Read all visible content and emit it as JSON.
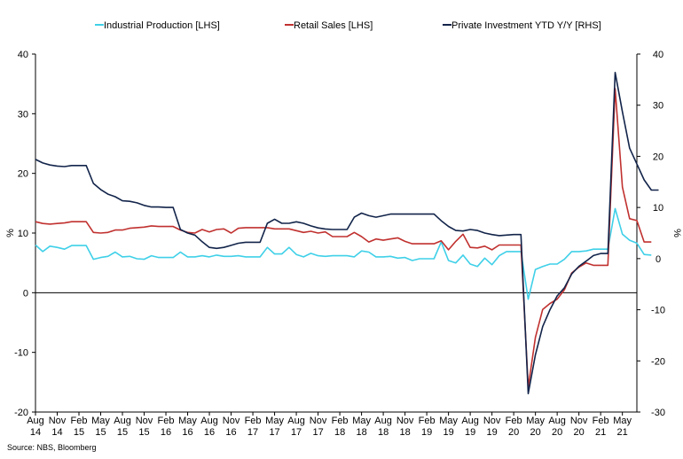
{
  "chart_data": {
    "type": "line",
    "title": "",
    "source": "Source: NBS, Bloomberg",
    "y_left_label": "%",
    "y_right_label": "%",
    "y_left_range": [
      -20,
      40
    ],
    "y_right_range": [
      -30,
      40
    ],
    "y_left_ticks": [
      "40",
      "30",
      "20",
      "10",
      "0",
      "-10",
      "-20"
    ],
    "y_right_ticks": [
      "40",
      "30",
      "20",
      "10",
      "0",
      "-10",
      "-20",
      "-30"
    ],
    "x_ticks": [
      {
        "m": "Aug",
        "y": "14"
      },
      {
        "m": "Nov",
        "y": "14"
      },
      {
        "m": "Feb",
        "y": "15"
      },
      {
        "m": "May",
        "y": "15"
      },
      {
        "m": "Aug",
        "y": "15"
      },
      {
        "m": "Nov",
        "y": "15"
      },
      {
        "m": "Feb",
        "y": "16"
      },
      {
        "m": "May",
        "y": "16"
      },
      {
        "m": "Aug",
        "y": "16"
      },
      {
        "m": "Nov",
        "y": "16"
      },
      {
        "m": "Feb",
        "y": "17"
      },
      {
        "m": "May",
        "y": "17"
      },
      {
        "m": "Aug",
        "y": "17"
      },
      {
        "m": "Nov",
        "y": "17"
      },
      {
        "m": "Feb",
        "y": "18"
      },
      {
        "m": "May",
        "y": "18"
      },
      {
        "m": "Aug",
        "y": "18"
      },
      {
        "m": "Nov",
        "y": "18"
      },
      {
        "m": "Feb",
        "y": "19"
      },
      {
        "m": "May",
        "y": "19"
      },
      {
        "m": "Aug",
        "y": "19"
      },
      {
        "m": "Nov",
        "y": "19"
      },
      {
        "m": "Feb",
        "y": "20"
      },
      {
        "m": "May",
        "y": "20"
      },
      {
        "m": "Aug",
        "y": "20"
      },
      {
        "m": "Nov",
        "y": "20"
      },
      {
        "m": "Feb",
        "y": "21"
      },
      {
        "m": "May",
        "y": "21"
      }
    ],
    "x_start": "2014-08",
    "x_end": "2021-07",
    "legend_position": "top",
    "series": [
      {
        "name": "Industrial Production [LHS]",
        "axis": "left",
        "color": "#3fd0e8",
        "points": [
          [
            "2014-08",
            8.0
          ],
          [
            "2014-09",
            6.9
          ],
          [
            "2014-10",
            7.8
          ],
          [
            "2014-11",
            7.6
          ],
          [
            "2014-12",
            7.3
          ],
          [
            "2015-01",
            7.9
          ],
          [
            "2015-02",
            7.9
          ],
          [
            "2015-03",
            7.9
          ],
          [
            "2015-04",
            5.6
          ],
          [
            "2015-05",
            5.9
          ],
          [
            "2015-06",
            6.1
          ],
          [
            "2015-07",
            6.8
          ],
          [
            "2015-08",
            6.0
          ],
          [
            "2015-09",
            6.1
          ],
          [
            "2015-10",
            5.7
          ],
          [
            "2015-11",
            5.6
          ],
          [
            "2015-12",
            6.2
          ],
          [
            "2016-01",
            5.9
          ],
          [
            "2016-02",
            5.9
          ],
          [
            "2016-03",
            5.9
          ],
          [
            "2016-04",
            6.8
          ],
          [
            "2016-05",
            6.0
          ],
          [
            "2016-06",
            6.0
          ],
          [
            "2016-07",
            6.2
          ],
          [
            "2016-08",
            6.0
          ],
          [
            "2016-09",
            6.3
          ],
          [
            "2016-10",
            6.1
          ],
          [
            "2016-11",
            6.1
          ],
          [
            "2016-12",
            6.2
          ],
          [
            "2017-01",
            6.0
          ],
          [
            "2017-02",
            6.0
          ],
          [
            "2017-03",
            6.0
          ],
          [
            "2017-04",
            7.6
          ],
          [
            "2017-05",
            6.5
          ],
          [
            "2017-06",
            6.5
          ],
          [
            "2017-07",
            7.6
          ],
          [
            "2017-08",
            6.4
          ],
          [
            "2017-09",
            6.0
          ],
          [
            "2017-10",
            6.6
          ],
          [
            "2017-11",
            6.2
          ],
          [
            "2017-12",
            6.1
          ],
          [
            "2018-01",
            6.2
          ],
          [
            "2018-02",
            6.2
          ],
          [
            "2018-03",
            6.2
          ],
          [
            "2018-04",
            6.0
          ],
          [
            "2018-05",
            7.0
          ],
          [
            "2018-06",
            6.8
          ],
          [
            "2018-07",
            6.0
          ],
          [
            "2018-08",
            6.0
          ],
          [
            "2018-09",
            6.1
          ],
          [
            "2018-10",
            5.8
          ],
          [
            "2018-11",
            5.9
          ],
          [
            "2018-12",
            5.4
          ],
          [
            "2019-01",
            5.7
          ],
          [
            "2019-02",
            5.7
          ],
          [
            "2019-03",
            5.7
          ],
          [
            "2019-04",
            8.5
          ],
          [
            "2019-05",
            5.4
          ],
          [
            "2019-06",
            5.0
          ],
          [
            "2019-07",
            6.3
          ],
          [
            "2019-08",
            4.8
          ],
          [
            "2019-09",
            4.4
          ],
          [
            "2019-10",
            5.8
          ],
          [
            "2019-11",
            4.7
          ],
          [
            "2019-12",
            6.2
          ],
          [
            "2020-01",
            6.9
          ],
          [
            "2020-02",
            6.9
          ],
          [
            "2020-03",
            6.9
          ],
          [
            "2020-04",
            -1.1
          ],
          [
            "2020-05",
            3.9
          ],
          [
            "2020-06",
            4.4
          ],
          [
            "2020-07",
            4.8
          ],
          [
            "2020-08",
            4.8
          ],
          [
            "2020-09",
            5.6
          ],
          [
            "2020-10",
            6.9
          ],
          [
            "2020-11",
            6.9
          ],
          [
            "2020-12",
            7.0
          ],
          [
            "2021-01",
            7.3
          ],
          [
            "2021-02",
            7.3
          ],
          [
            "2021-03",
            7.3
          ],
          [
            "2021-04",
            14.1
          ],
          [
            "2021-05",
            9.8
          ],
          [
            "2021-06",
            8.8
          ],
          [
            "2021-07",
            8.3
          ],
          [
            "2021-08",
            6.4
          ],
          [
            "2021-09",
            6.3
          ]
        ]
      },
      {
        "name": "Retail Sales [LHS]",
        "axis": "left",
        "color": "#c0312f",
        "points": [
          [
            "2014-08",
            11.9
          ],
          [
            "2014-09",
            11.6
          ],
          [
            "2014-10",
            11.5
          ],
          [
            "2014-11",
            11.6
          ],
          [
            "2014-12",
            11.7
          ],
          [
            "2015-01",
            11.9
          ],
          [
            "2015-02",
            11.9
          ],
          [
            "2015-03",
            11.9
          ],
          [
            "2015-04",
            10.1
          ],
          [
            "2015-05",
            10.0
          ],
          [
            "2015-06",
            10.1
          ],
          [
            "2015-07",
            10.5
          ],
          [
            "2015-08",
            10.5
          ],
          [
            "2015-09",
            10.8
          ],
          [
            "2015-10",
            10.9
          ],
          [
            "2015-11",
            11.0
          ],
          [
            "2015-12",
            11.2
          ],
          [
            "2016-01",
            11.1
          ],
          [
            "2016-02",
            11.1
          ],
          [
            "2016-03",
            11.1
          ],
          [
            "2016-04",
            10.5
          ],
          [
            "2016-05",
            10.1
          ],
          [
            "2016-06",
            10.0
          ],
          [
            "2016-07",
            10.6
          ],
          [
            "2016-08",
            10.2
          ],
          [
            "2016-09",
            10.6
          ],
          [
            "2016-10",
            10.7
          ],
          [
            "2016-11",
            10.0
          ],
          [
            "2016-12",
            10.8
          ],
          [
            "2017-01",
            10.9
          ],
          [
            "2017-02",
            10.9
          ],
          [
            "2017-03",
            10.9
          ],
          [
            "2017-04",
            10.9
          ],
          [
            "2017-05",
            10.7
          ],
          [
            "2017-06",
            10.7
          ],
          [
            "2017-07",
            10.7
          ],
          [
            "2017-08",
            10.4
          ],
          [
            "2017-09",
            10.1
          ],
          [
            "2017-10",
            10.3
          ],
          [
            "2017-11",
            10.0
          ],
          [
            "2017-12",
            10.2
          ],
          [
            "2018-01",
            9.4
          ],
          [
            "2018-02",
            9.4
          ],
          [
            "2018-03",
            9.4
          ],
          [
            "2018-04",
            10.1
          ],
          [
            "2018-05",
            9.4
          ],
          [
            "2018-06",
            8.5
          ],
          [
            "2018-07",
            9.0
          ],
          [
            "2018-08",
            8.8
          ],
          [
            "2018-09",
            9.0
          ],
          [
            "2018-10",
            9.2
          ],
          [
            "2018-11",
            8.6
          ],
          [
            "2018-12",
            8.2
          ],
          [
            "2019-01",
            8.2
          ],
          [
            "2019-02",
            8.2
          ],
          [
            "2019-03",
            8.2
          ],
          [
            "2019-04",
            8.7
          ],
          [
            "2019-05",
            7.2
          ],
          [
            "2019-06",
            8.6
          ],
          [
            "2019-07",
            9.8
          ],
          [
            "2019-08",
            7.6
          ],
          [
            "2019-09",
            7.5
          ],
          [
            "2019-10",
            7.8
          ],
          [
            "2019-11",
            7.2
          ],
          [
            "2019-12",
            8.0
          ],
          [
            "2020-01",
            8.0
          ],
          [
            "2020-02",
            8.0
          ],
          [
            "2020-03",
            8.0
          ],
          [
            "2020-04",
            -15.8
          ],
          [
            "2020-05",
            -7.5
          ],
          [
            "2020-06",
            -2.8
          ],
          [
            "2020-07",
            -1.8
          ],
          [
            "2020-08",
            -1.1
          ],
          [
            "2020-09",
            0.5
          ],
          [
            "2020-10",
            3.3
          ],
          [
            "2020-11",
            4.3
          ],
          [
            "2020-12",
            5.0
          ],
          [
            "2021-01",
            4.6
          ],
          [
            "2021-02",
            4.6
          ],
          [
            "2021-03",
            4.6
          ],
          [
            "2021-04",
            34.2
          ],
          [
            "2021-05",
            17.7
          ],
          [
            "2021-06",
            12.4
          ],
          [
            "2021-07",
            12.1
          ],
          [
            "2021-08",
            8.5
          ],
          [
            "2021-09",
            8.5
          ]
        ]
      },
      {
        "name": "Private Investment YTD Y/Y [RHS]",
        "axis": "right",
        "color": "#12244a",
        "points": [
          [
            "2014-08",
            19.4
          ],
          [
            "2014-09",
            18.7
          ],
          [
            "2014-10",
            18.3
          ],
          [
            "2014-11",
            18.1
          ],
          [
            "2014-12",
            18.0
          ],
          [
            "2015-01",
            18.2
          ],
          [
            "2015-02",
            18.2
          ],
          [
            "2015-03",
            18.2
          ],
          [
            "2015-04",
            14.7
          ],
          [
            "2015-05",
            13.5
          ],
          [
            "2015-06",
            12.6
          ],
          [
            "2015-07",
            12.1
          ],
          [
            "2015-08",
            11.3
          ],
          [
            "2015-09",
            11.2
          ],
          [
            "2015-10",
            10.9
          ],
          [
            "2015-11",
            10.4
          ],
          [
            "2015-12",
            10.1
          ],
          [
            "2016-01",
            10.1
          ],
          [
            "2016-02",
            10.0
          ],
          [
            "2016-03",
            10.0
          ],
          [
            "2016-04",
            5.7
          ],
          [
            "2016-05",
            5.0
          ],
          [
            "2016-06",
            4.6
          ],
          [
            "2016-07",
            3.3
          ],
          [
            "2016-08",
            2.2
          ],
          [
            "2016-09",
            2.0
          ],
          [
            "2016-10",
            2.2
          ],
          [
            "2016-11",
            2.6
          ],
          [
            "2016-12",
            3.0
          ],
          [
            "2017-01",
            3.2
          ],
          [
            "2017-02",
            3.2
          ],
          [
            "2017-03",
            3.2
          ],
          [
            "2017-04",
            6.9
          ],
          [
            "2017-05",
            7.7
          ],
          [
            "2017-06",
            6.9
          ],
          [
            "2017-07",
            6.9
          ],
          [
            "2017-08",
            7.2
          ],
          [
            "2017-09",
            6.9
          ],
          [
            "2017-10",
            6.4
          ],
          [
            "2017-11",
            6.0
          ],
          [
            "2017-12",
            5.8
          ],
          [
            "2018-01",
            5.7
          ],
          [
            "2018-02",
            5.7
          ],
          [
            "2018-03",
            5.7
          ],
          [
            "2018-04",
            8.1
          ],
          [
            "2018-05",
            8.9
          ],
          [
            "2018-06",
            8.4
          ],
          [
            "2018-07",
            8.1
          ],
          [
            "2018-08",
            8.4
          ],
          [
            "2018-09",
            8.7
          ],
          [
            "2018-10",
            8.7
          ],
          [
            "2018-11",
            8.7
          ],
          [
            "2018-12",
            8.7
          ],
          [
            "2019-01",
            8.7
          ],
          [
            "2019-02",
            8.7
          ],
          [
            "2019-03",
            8.7
          ],
          [
            "2019-04",
            7.4
          ],
          [
            "2019-05",
            6.3
          ],
          [
            "2019-06",
            5.5
          ],
          [
            "2019-07",
            5.4
          ],
          [
            "2019-08",
            5.7
          ],
          [
            "2019-09",
            5.5
          ],
          [
            "2019-10",
            5.0
          ],
          [
            "2019-11",
            4.7
          ],
          [
            "2019-12",
            4.5
          ],
          [
            "2020-01",
            4.6
          ],
          [
            "2020-02",
            4.7
          ],
          [
            "2020-03",
            4.7
          ],
          [
            "2020-04",
            -26.4
          ],
          [
            "2020-05",
            -18.8
          ],
          [
            "2020-06",
            -13.3
          ],
          [
            "2020-07",
            -10.0
          ],
          [
            "2020-08",
            -7.3
          ],
          [
            "2020-09",
            -5.7
          ],
          [
            "2020-10",
            -3.0
          ],
          [
            "2020-11",
            -1.5
          ],
          [
            "2020-12",
            -0.5
          ],
          [
            "2021-01",
            0.6
          ],
          [
            "2021-02",
            1.0
          ],
          [
            "2021-03",
            1.0
          ],
          [
            "2021-04",
            36.4
          ],
          [
            "2021-05",
            28.7
          ],
          [
            "2021-06",
            21.6
          ],
          [
            "2021-07",
            18.5
          ],
          [
            "2021-08",
            15.4
          ],
          [
            "2021-09",
            13.4
          ],
          [
            "2021-10",
            13.4
          ]
        ]
      }
    ]
  }
}
